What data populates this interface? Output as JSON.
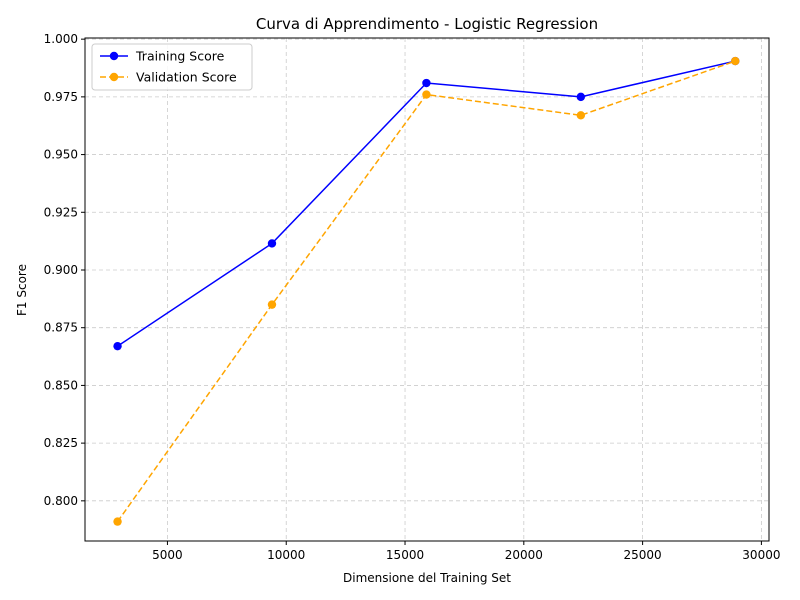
{
  "chart_data": {
    "type": "line",
    "title": "Curva di Apprendimento - Logistic Regression",
    "xlabel": "Dimensione del Training Set",
    "ylabel": "F1 Score",
    "xlim": [
      1530,
      30320
    ],
    "ylim": [
      0.7826,
      1.0005
    ],
    "xticks": [
      5000,
      10000,
      15000,
      20000,
      25000,
      30000
    ],
    "xtick_labels": [
      "5000",
      "10000",
      "15000",
      "20000",
      "25000",
      "30000"
    ],
    "yticks": [
      0.8,
      0.825,
      0.85,
      0.875,
      0.9,
      0.925,
      0.95,
      0.975,
      1.0
    ],
    "ytick_labels": [
      "0.800",
      "0.825",
      "0.850",
      "0.875",
      "0.900",
      "0.925",
      "0.950",
      "0.975",
      "1.000"
    ],
    "grid": true,
    "legend_position": "top-left",
    "x": [
      2900,
      9400,
      15900,
      22400,
      28900
    ],
    "series": [
      {
        "name": "Training Score",
        "values": [
          0.867,
          0.9115,
          0.981,
          0.975,
          0.9905
        ],
        "color": "#0000ff",
        "line_style": "solid",
        "marker": "circle"
      },
      {
        "name": "Validation Score",
        "values": [
          0.791,
          0.885,
          0.976,
          0.967,
          0.9905
        ],
        "color": "#ffa500",
        "line_style": "dashed",
        "marker": "circle"
      }
    ]
  }
}
